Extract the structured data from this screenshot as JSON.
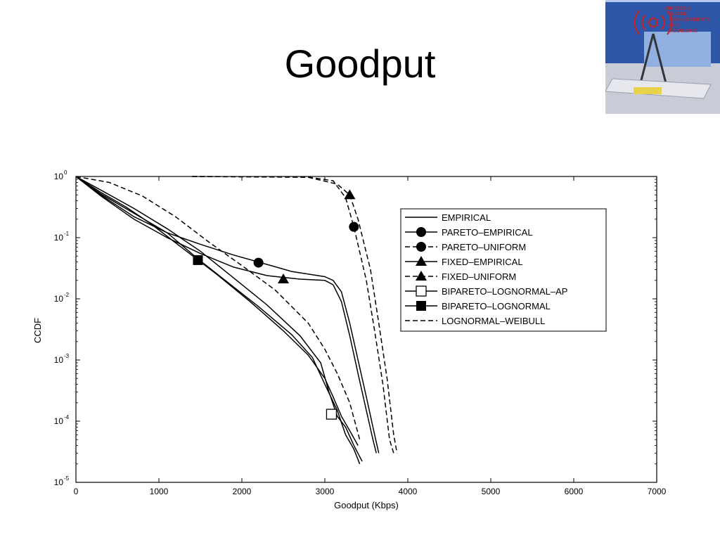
{
  "slide": {
    "title": "Goodput"
  },
  "logo": {
    "lines": [
      "WIRELESS",
      "TRAFFIC",
      "MEASUREMENTS",
      "AND",
      "MODELLING"
    ],
    "icon": "radio-tower-compass-icon"
  },
  "chart_data": {
    "type": "line",
    "xlabel": "Goodput (Kbps)",
    "ylabel": "CCDF",
    "x_scale": "linear",
    "y_scale": "log",
    "xlim": [
      0,
      7000
    ],
    "ylim": [
      1e-05,
      1
    ],
    "x_ticks": [
      0,
      1000,
      2000,
      3000,
      4000,
      5000,
      6000,
      7000
    ],
    "y_ticks": [
      {
        "base": "10",
        "exp": "0"
      },
      {
        "base": "10",
        "exp": "-1"
      },
      {
        "base": "10",
        "exp": "-2"
      },
      {
        "base": "10",
        "exp": "-3"
      },
      {
        "base": "10",
        "exp": "-4"
      },
      {
        "base": "10",
        "exp": "-5"
      }
    ],
    "grid": false,
    "legend_position": "top-right",
    "series": [
      {
        "name": "EMPIRICAL",
        "dash": "solid",
        "marker": "none",
        "points": [
          [
            0,
            1
          ],
          [
            300,
            0.55
          ],
          [
            600,
            0.32
          ],
          [
            900,
            0.17
          ],
          [
            1300,
            0.065
          ],
          [
            1700,
            0.025
          ],
          [
            2100,
            0.009
          ],
          [
            2500,
            0.003
          ],
          [
            2800,
            0.0012
          ],
          [
            3000,
            0.0005
          ],
          [
            3100,
            0.00025
          ],
          [
            3200,
            0.00012
          ],
          [
            3300,
            7e-05
          ],
          [
            3400,
            4e-05
          ]
        ]
      },
      {
        "name": "PARETO–EMPIRICAL",
        "dash": "solid",
        "marker": "circle-filled",
        "marker_points": [
          [
            2200,
            0.039
          ]
        ],
        "points": [
          [
            0,
            1
          ],
          [
            300,
            0.5
          ],
          [
            700,
            0.22
          ],
          [
            1100,
            0.12
          ],
          [
            1500,
            0.078
          ],
          [
            1900,
            0.052
          ],
          [
            2200,
            0.04
          ],
          [
            2600,
            0.028
          ],
          [
            3000,
            0.023
          ],
          [
            3100,
            0.02
          ],
          [
            3200,
            0.013
          ],
          [
            3300,
            0.004
          ],
          [
            3400,
            0.001
          ],
          [
            3500,
            0.00025
          ],
          [
            3600,
            6e-05
          ],
          [
            3650,
            3e-05
          ]
        ]
      },
      {
        "name": "PARETO–UNIFORM",
        "dash": "dashed",
        "marker": "circle-filled",
        "marker_points": [
          [
            3350,
            0.15
          ]
        ],
        "points": [
          [
            1400,
            1
          ],
          [
            2800,
            0.98
          ],
          [
            3100,
            0.85
          ],
          [
            3250,
            0.45
          ],
          [
            3350,
            0.15
          ],
          [
            3500,
            0.02
          ],
          [
            3600,
            0.003
          ],
          [
            3700,
            0.0004
          ],
          [
            3780,
            5e-05
          ],
          [
            3830,
            3e-05
          ]
        ]
      },
      {
        "name": "FIXED–EMPIRICAL",
        "dash": "solid",
        "marker": "triangle-filled",
        "marker_points": [
          [
            2500,
            0.021
          ]
        ],
        "points": [
          [
            0,
            1
          ],
          [
            300,
            0.48
          ],
          [
            700,
            0.2
          ],
          [
            1100,
            0.1
          ],
          [
            1500,
            0.055
          ],
          [
            1900,
            0.033
          ],
          [
            2300,
            0.024
          ],
          [
            2700,
            0.021
          ],
          [
            3000,
            0.02
          ],
          [
            3100,
            0.017
          ],
          [
            3200,
            0.009
          ],
          [
            3300,
            0.0025
          ],
          [
            3400,
            0.0006
          ],
          [
            3500,
            0.00015
          ],
          [
            3580,
            5e-05
          ],
          [
            3620,
            3e-05
          ]
        ]
      },
      {
        "name": "FIXED–UNIFORM",
        "dash": "dashed",
        "marker": "triangle-filled",
        "marker_points": [
          [
            3300,
            0.5
          ]
        ],
        "points": [
          [
            1400,
            1
          ],
          [
            2800,
            0.97
          ],
          [
            3150,
            0.75
          ],
          [
            3300,
            0.5
          ],
          [
            3400,
            0.2
          ],
          [
            3550,
            0.03
          ],
          [
            3650,
            0.004
          ],
          [
            3750,
            0.0005
          ],
          [
            3830,
            6e-05
          ],
          [
            3870,
            3e-05
          ]
        ]
      },
      {
        "name": "BIPARETO–LOGNORMAL–AP",
        "dash": "solid",
        "marker": "square-open",
        "marker_points": [
          [
            3080,
            0.00013
          ]
        ],
        "points": [
          [
            0,
            1
          ],
          [
            300,
            0.6
          ],
          [
            700,
            0.3
          ],
          [
            1100,
            0.14
          ],
          [
            1500,
            0.06
          ],
          [
            1900,
            0.022
          ],
          [
            2300,
            0.008
          ],
          [
            2700,
            0.0025
          ],
          [
            2950,
            0.0009
          ],
          [
            3050,
            0.0003
          ],
          [
            3150,
            0.00012
          ],
          [
            3250,
            8e-05
          ],
          [
            3350,
            4e-05
          ],
          [
            3450,
            2.2e-05
          ]
        ]
      },
      {
        "name": "BIPARETO–LOGNORMAL",
        "dash": "solid",
        "marker": "square-filled",
        "marker_points": [
          [
            1470,
            0.043
          ]
        ],
        "points": [
          [
            0,
            1
          ],
          [
            300,
            0.52
          ],
          [
            700,
            0.25
          ],
          [
            1100,
            0.12
          ],
          [
            1470,
            0.045
          ],
          [
            1800,
            0.02
          ],
          [
            2200,
            0.0075
          ],
          [
            2600,
            0.0026
          ],
          [
            2850,
            0.0011
          ],
          [
            3000,
            0.0004
          ],
          [
            3150,
            0.00015
          ],
          [
            3250,
            6e-05
          ],
          [
            3350,
            3.5e-05
          ],
          [
            3420,
            2e-05
          ]
        ]
      },
      {
        "name": "LOGNORMAL–WEIBULL",
        "dash": "dashed",
        "marker": "none",
        "points": [
          [
            0,
            1
          ],
          [
            400,
            0.8
          ],
          [
            800,
            0.48
          ],
          [
            1200,
            0.22
          ],
          [
            1600,
            0.085
          ],
          [
            2000,
            0.035
          ],
          [
            2400,
            0.014
          ],
          [
            2800,
            0.004
          ],
          [
            3000,
            0.0015
          ],
          [
            3150,
            0.0006
          ],
          [
            3300,
            0.0002
          ],
          [
            3420,
            5e-05
          ]
        ]
      }
    ]
  }
}
